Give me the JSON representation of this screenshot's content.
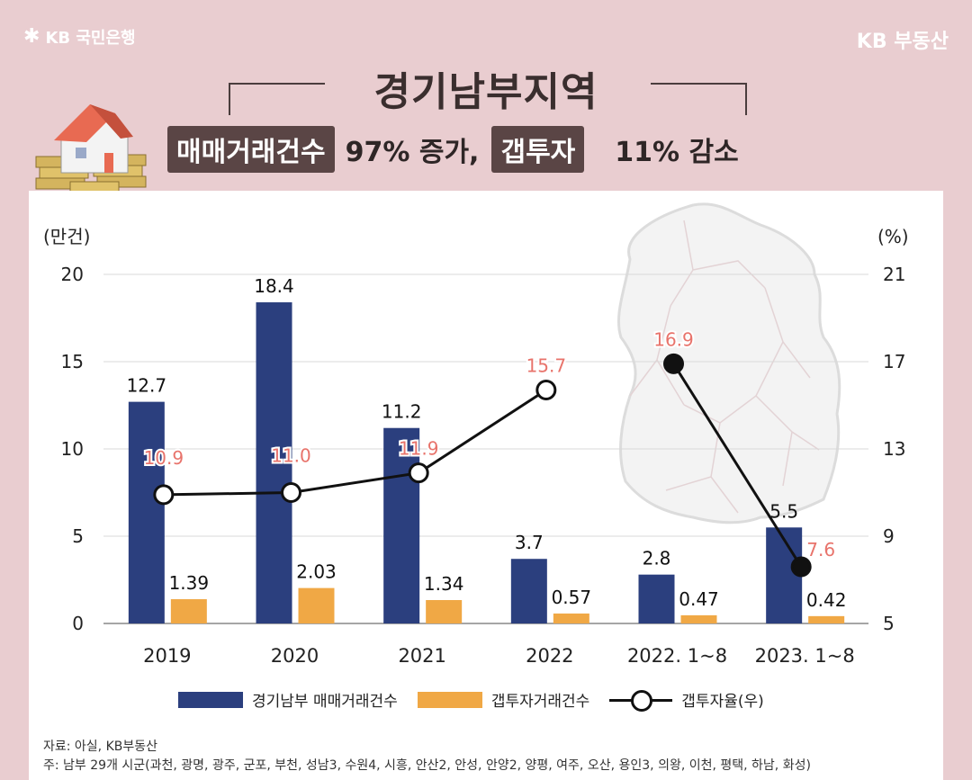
{
  "header": {
    "bank_logo": "KB 국민은행",
    "brand": "KB 부동산",
    "title": "경기남부지역",
    "tag1": "매매거래건수",
    "text1": "97% 증가,",
    "tag2": "갭투자",
    "text2": "11% 감소"
  },
  "chart_data": {
    "type": "bar",
    "categories": [
      "2019",
      "2020",
      "2021",
      "2022",
      "2022. 1~8",
      "2023. 1~8"
    ],
    "series": [
      {
        "name": "경기남부 매매거래건수",
        "values": [
          12.7,
          18.4,
          11.2,
          3.7,
          2.8,
          5.5
        ],
        "color": "#2b3f7e",
        "axis": "left"
      },
      {
        "name": "갭투자거래건수",
        "values": [
          1.39,
          2.03,
          1.34,
          0.57,
          0.47,
          0.42
        ],
        "color": "#f0a845",
        "axis": "left"
      },
      {
        "name": "갭투자율(우)",
        "type": "line",
        "values": [
          10.9,
          11.0,
          11.9,
          15.7,
          16.9,
          7.6
        ],
        "color": "#111111",
        "axis": "right",
        "segments": [
          [
            0,
            3
          ],
          [
            4,
            5
          ]
        ]
      }
    ],
    "y_left": {
      "label": "(만건)",
      "ticks": [
        0,
        5,
        10,
        15,
        20
      ],
      "range": [
        0,
        20
      ]
    },
    "y_right": {
      "label": "(%)",
      "ticks": [
        5,
        9,
        13,
        17,
        21
      ],
      "range": [
        5,
        21
      ]
    },
    "bar_label_color": "#111111",
    "line_label_color": "#e8736b"
  },
  "source": {
    "line1": "자료: 아실, KB부동산",
    "line2": "주: 남부 29개 시군(과천, 광명, 광주, 군포, 부천, 성남3, 수원4, 시흥, 안산2, 안성, 안양2, 양평, 여주, 오산, 용인3, 의왕, 이천, 평택, 하남, 화성)"
  }
}
